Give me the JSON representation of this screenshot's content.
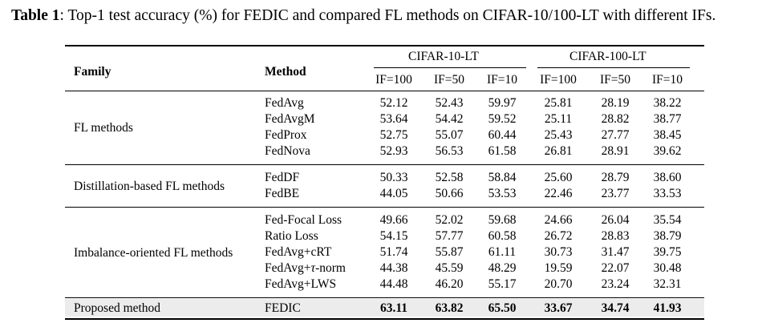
{
  "caption": {
    "label": "Table 1",
    "text": ": Top-1 test accuracy (%) for FEDIC and compared FL methods on CIFAR-10/100-LT with different IFs."
  },
  "header": {
    "family": "Family",
    "method": "Method",
    "group1": "CIFAR-10-LT",
    "group2": "CIFAR-100-LT",
    "ifs": [
      "IF=100",
      "IF=50",
      "IF=10",
      "IF=100",
      "IF=50",
      "IF=10"
    ]
  },
  "sections": [
    {
      "family": "FL methods",
      "rows": [
        {
          "method": "FedAvg",
          "values": [
            "52.12",
            "52.43",
            "59.97",
            "25.81",
            "28.19",
            "38.22"
          ]
        },
        {
          "method": "FedAvgM",
          "values": [
            "53.64",
            "54.42",
            "59.52",
            "25.11",
            "28.82",
            "38.77"
          ]
        },
        {
          "method": "FedProx",
          "values": [
            "52.75",
            "55.07",
            "60.44",
            "25.43",
            "27.77",
            "38.45"
          ]
        },
        {
          "method": "FedNova",
          "values": [
            "52.93",
            "56.53",
            "61.58",
            "26.81",
            "28.91",
            "39.62"
          ]
        }
      ]
    },
    {
      "family": "Distillation-based FL methods",
      "rows": [
        {
          "method": "FedDF",
          "values": [
            "50.33",
            "52.58",
            "58.84",
            "25.60",
            "28.79",
            "38.60"
          ]
        },
        {
          "method": "FedBE",
          "values": [
            "44.05",
            "50.66",
            "53.53",
            "22.46",
            "23.77",
            "33.53"
          ]
        }
      ]
    },
    {
      "family": "Imbalance-oriented FL methods",
      "rows": [
        {
          "method": "Fed-Focal Loss",
          "values": [
            "49.66",
            "52.02",
            "59.68",
            "24.66",
            "26.04",
            "35.54"
          ]
        },
        {
          "method": "Ratio Loss",
          "values": [
            "54.15",
            "57.77",
            "60.58",
            "26.72",
            "28.83",
            "38.79"
          ]
        },
        {
          "method": "FedAvg+cRT",
          "values": [
            "51.74",
            "55.87",
            "61.11",
            "30.73",
            "31.47",
            "39.75"
          ]
        },
        {
          "method": "FedAvg+τ-norm",
          "values": [
            "44.38",
            "45.59",
            "48.29",
            "19.59",
            "22.07",
            "30.48"
          ]
        },
        {
          "method": "FedAvg+LWS",
          "values": [
            "44.48",
            "46.20",
            "55.17",
            "20.70",
            "23.24",
            "32.31"
          ]
        }
      ]
    }
  ],
  "proposed": {
    "family": "Proposed method",
    "method": "FEDIC",
    "values": [
      "63.11",
      "63.82",
      "65.50",
      "33.67",
      "34.74",
      "41.93"
    ]
  },
  "colors": {
    "highlight_row": "#ececec",
    "text": "#000000"
  }
}
